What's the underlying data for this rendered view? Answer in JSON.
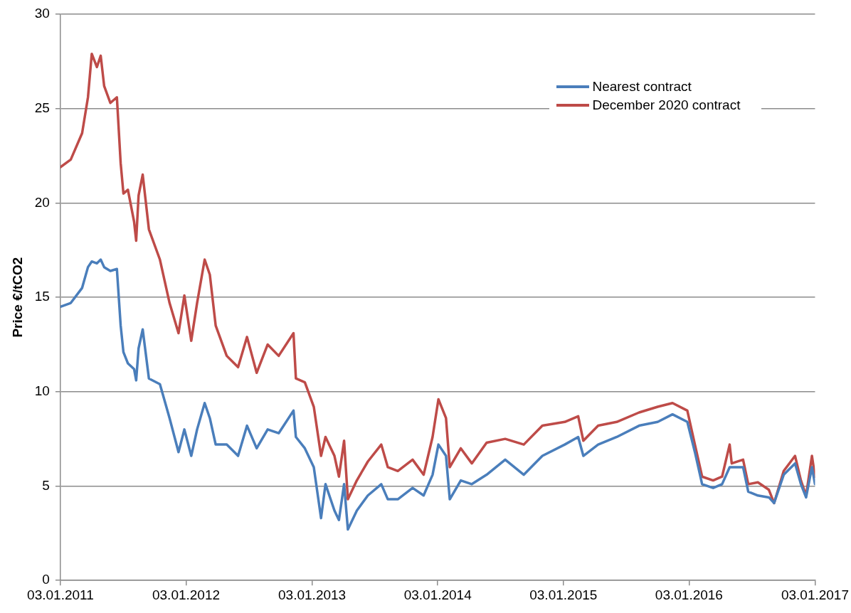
{
  "chart_data": {
    "type": "line",
    "ylabel": "Price €/tCO2",
    "x": [
      "2011-01-03",
      "2011-02-02",
      "2011-03-07",
      "2011-03-24",
      "2011-04-04",
      "2011-04-19",
      "2011-04-30",
      "2011-05-10",
      "2011-05-28",
      "2011-06-16",
      "2011-06-27",
      "2011-07-05",
      "2011-07-18",
      "2011-08-05",
      "2011-08-11",
      "2011-08-18",
      "2011-08-30",
      "2011-09-17",
      "2011-10-19",
      "2011-11-16",
      "2011-12-12",
      "2011-12-29",
      "2012-01-18",
      "2012-02-04",
      "2012-02-26",
      "2012-03-12",
      "2012-03-29",
      "2012-04-30",
      "2012-06-02",
      "2012-06-28",
      "2012-07-26",
      "2012-08-27",
      "2012-09-28",
      "2012-11-10",
      "2012-11-17",
      "2012-12-13",
      "2013-01-08",
      "2013-01-29",
      "2013-02-11",
      "2013-03-09",
      "2013-03-22",
      "2013-04-06",
      "2013-04-17",
      "2013-05-13",
      "2013-06-14",
      "2013-07-23",
      "2013-08-11",
      "2013-09-09",
      "2013-10-22",
      "2013-11-23",
      "2013-12-19",
      "2014-01-05",
      "2014-01-27",
      "2014-02-07",
      "2014-03-11",
      "2014-04-12",
      "2014-05-25",
      "2014-07-18",
      "2014-09-10",
      "2014-11-03",
      "2015-01-07",
      "2015-02-15",
      "2015-03-02",
      "2015-04-14",
      "2015-06-07",
      "2015-08-11",
      "2015-10-04",
      "2015-11-16",
      "2015-12-29",
      "2016-01-20",
      "2016-02-10",
      "2016-03-13",
      "2016-04-08",
      "2016-04-30",
      "2016-05-06",
      "2016-06-08",
      "2016-06-23",
      "2016-07-21",
      "2016-08-22",
      "2016-09-06",
      "2016-10-04",
      "2016-11-06",
      "2016-11-23",
      "2016-12-08",
      "2016-12-25",
      "2017-01-03"
    ],
    "series": [
      {
        "name": "Nearest contract",
        "color": "#4a7ebb",
        "values": [
          14.5,
          14.7,
          15.5,
          16.6,
          16.9,
          16.8,
          17.0,
          16.6,
          16.4,
          16.5,
          13.5,
          12.1,
          11.5,
          11.2,
          10.6,
          12.3,
          13.3,
          10.7,
          10.4,
          8.6,
          6.8,
          8.0,
          6.6,
          8.0,
          9.4,
          8.6,
          7.2,
          7.2,
          6.6,
          8.2,
          7.0,
          8.0,
          7.8,
          9.0,
          7.6,
          7.0,
          6.0,
          3.3,
          5.1,
          3.7,
          3.2,
          5.1,
          2.7,
          3.7,
          4.5,
          5.1,
          4.3,
          4.3,
          4.9,
          4.5,
          5.6,
          7.2,
          6.6,
          4.3,
          5.3,
          5.1,
          5.6,
          6.4,
          5.6,
          6.6,
          7.2,
          7.6,
          6.6,
          7.2,
          7.6,
          8.2,
          8.4,
          8.8,
          8.4,
          6.8,
          5.1,
          4.9,
          5.1,
          6.0,
          6.0,
          6.0,
          4.7,
          4.5,
          4.4,
          4.1,
          5.6,
          6.2,
          5.1,
          4.4,
          6.0,
          5.1
        ]
      },
      {
        "name": "December 2020 contract",
        "color": "#be4b48",
        "values": [
          21.9,
          22.3,
          23.7,
          25.6,
          27.9,
          27.2,
          27.8,
          26.2,
          25.3,
          25.6,
          22.1,
          20.5,
          20.7,
          19.0,
          18.0,
          20.4,
          21.5,
          18.6,
          17.0,
          14.7,
          13.1,
          15.1,
          12.7,
          14.7,
          17.0,
          16.2,
          13.5,
          11.9,
          11.3,
          12.9,
          11.0,
          12.5,
          11.9,
          13.1,
          10.7,
          10.5,
          9.2,
          6.6,
          7.6,
          6.6,
          5.5,
          7.4,
          4.3,
          5.3,
          6.3,
          7.2,
          6.0,
          5.8,
          6.4,
          5.6,
          7.6,
          9.6,
          8.6,
          6.0,
          7.0,
          6.2,
          7.3,
          7.5,
          7.2,
          8.2,
          8.4,
          8.7,
          7.4,
          8.2,
          8.4,
          8.9,
          9.2,
          9.4,
          9.0,
          7.2,
          5.5,
          5.3,
          5.5,
          7.2,
          6.2,
          6.4,
          5.1,
          5.2,
          4.8,
          4.1,
          5.8,
          6.6,
          5.3,
          4.5,
          6.6,
          5.5
        ]
      }
    ],
    "xlim": [
      "2011-01-03",
      "2017-01-03"
    ],
    "xticks": [
      {
        "value": "2011-01-03",
        "label": "03.01.2011"
      },
      {
        "value": "2012-01-03",
        "label": "03.01.2012"
      },
      {
        "value": "2013-01-03",
        "label": "03.01.2013"
      },
      {
        "value": "2014-01-03",
        "label": "03.01.2014"
      },
      {
        "value": "2015-01-03",
        "label": "03.01.2015"
      },
      {
        "value": "2016-01-03",
        "label": "03.01.2016"
      },
      {
        "value": "2017-01-03",
        "label": "03.01.2017"
      }
    ],
    "ylim": [
      0,
      30
    ],
    "yticks": [
      0,
      5,
      10,
      15,
      20,
      25,
      30
    ],
    "grid": "y",
    "legend": "top right",
    "marker": "none",
    "line_style": "solid"
  }
}
